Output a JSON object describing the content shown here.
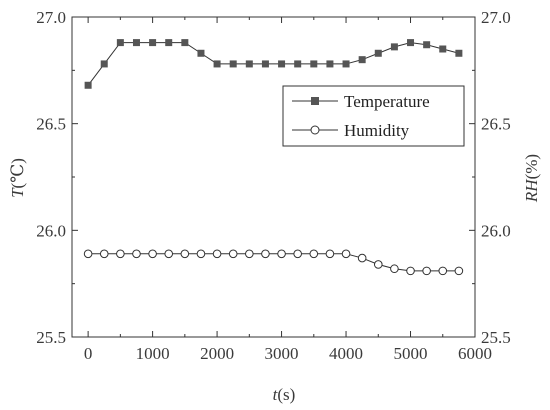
{
  "chart_data": {
    "type": "line",
    "title": "",
    "xlabel": {
      "italic": "t",
      "rest": "(s)"
    },
    "ylabel_left": {
      "italic": "T",
      "rest": "(℃)"
    },
    "ylabel_right": {
      "italic": "RH",
      "rest": "(%)"
    },
    "xlim": [
      -250,
      6000
    ],
    "ylim": [
      25.5,
      27.0
    ],
    "x_ticks": [
      "0",
      "1000",
      "2000",
      "3000",
      "4000",
      "5000",
      "6000"
    ],
    "y_ticks_left": [
      "25.5",
      "26.0",
      "26.5",
      "27.0"
    ],
    "y_ticks_right": [
      "25.5",
      "26.0",
      "26.5",
      "27.0"
    ],
    "x": [
      0,
      250,
      500,
      750,
      1000,
      1250,
      1500,
      1750,
      2000,
      2250,
      2500,
      2750,
      3000,
      3250,
      3500,
      3750,
      4000,
      4250,
      4500,
      4750,
      5000,
      5250,
      5500,
      5750
    ],
    "series": [
      {
        "name": "Temperature",
        "marker": "square",
        "color": "#555555",
        "values": [
          26.68,
          26.78,
          26.88,
          26.88,
          26.88,
          26.88,
          26.88,
          26.83,
          26.78,
          26.78,
          26.78,
          26.78,
          26.78,
          26.78,
          26.78,
          26.78,
          26.78,
          26.8,
          26.83,
          26.86,
          26.88,
          26.87,
          26.85,
          26.83
        ]
      },
      {
        "name": "Humidity",
        "marker": "circle-open",
        "color": "#333333",
        "values": [
          25.89,
          25.89,
          25.89,
          25.89,
          25.89,
          25.89,
          25.89,
          25.89,
          25.89,
          25.89,
          25.89,
          25.89,
          25.89,
          25.89,
          25.89,
          25.89,
          25.89,
          25.87,
          25.84,
          25.82,
          25.81,
          25.81,
          25.81,
          25.81
        ]
      }
    ],
    "legend_position": "upper-right",
    "grid": false
  }
}
